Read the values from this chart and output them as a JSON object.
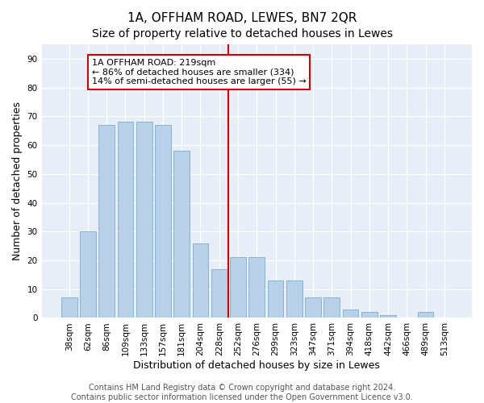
{
  "title": "1A, OFFHAM ROAD, LEWES, BN7 2QR",
  "subtitle": "Size of property relative to detached houses in Lewes",
  "xlabel": "Distribution of detached houses by size in Lewes",
  "ylabel": "Number of detached properties",
  "categories": [
    "38sqm",
    "62sqm",
    "86sqm",
    "109sqm",
    "133sqm",
    "157sqm",
    "181sqm",
    "204sqm",
    "228sqm",
    "252sqm",
    "276sqm",
    "299sqm",
    "323sqm",
    "347sqm",
    "371sqm",
    "394sqm",
    "418sqm",
    "442sqm",
    "466sqm",
    "489sqm",
    "513sqm"
  ],
  "values": [
    7,
    30,
    67,
    68,
    68,
    67,
    58,
    26,
    17,
    21,
    21,
    13,
    13,
    7,
    7,
    3,
    2,
    1,
    0,
    2,
    0
  ],
  "bar_color": "#b8d0e8",
  "bar_edge_color": "#7aadd4",
  "vline_x": 8.5,
  "vline_color": "#cc0000",
  "annotation_text": "1A OFFHAM ROAD: 219sqm\n← 86% of detached houses are smaller (334)\n14% of semi-detached houses are larger (55) →",
  "annotation_box_color": "#cc0000",
  "ylim": [
    0,
    95
  ],
  "yticks": [
    0,
    10,
    20,
    30,
    40,
    50,
    60,
    70,
    80,
    90
  ],
  "background_color": "#e8eef8",
  "footer_text": "Contains HM Land Registry data © Crown copyright and database right 2024.\nContains public sector information licensed under the Open Government Licence v3.0.",
  "title_fontsize": 11,
  "subtitle_fontsize": 10,
  "xlabel_fontsize": 9,
  "ylabel_fontsize": 9,
  "tick_fontsize": 7.5,
  "annotation_fontsize": 8,
  "footer_fontsize": 7
}
